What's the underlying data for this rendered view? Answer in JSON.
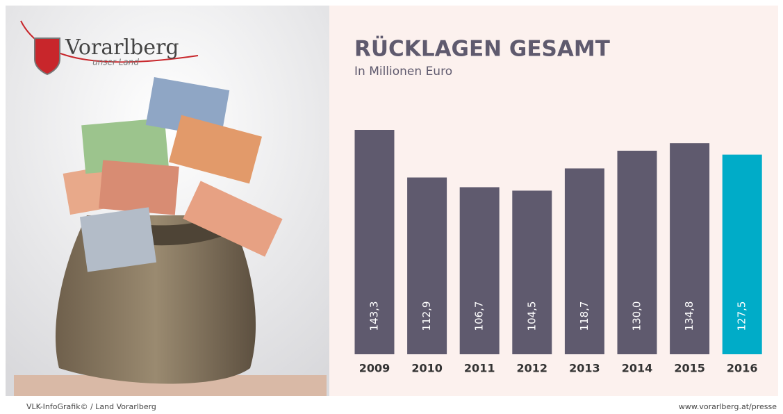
{
  "branding": {
    "name": "Vorarlberg",
    "tagline": "unser Land"
  },
  "chart_data": {
    "type": "bar",
    "title": "RÜCKLAGEN GESAMT",
    "subtitle": "In Millionen Euro",
    "categories": [
      "2009",
      "2010",
      "2011",
      "2012",
      "2013",
      "2014",
      "2015",
      "2016"
    ],
    "values": [
      143.3,
      112.9,
      106.7,
      104.5,
      118.7,
      130.0,
      134.8,
      127.5
    ],
    "value_labels": [
      "143,3",
      "112,9",
      "106,7",
      "104,5",
      "118,7",
      "130,0",
      "134,8",
      "127,5"
    ],
    "colors": [
      "#5f5a6e",
      "#5f5a6e",
      "#5f5a6e",
      "#5f5a6e",
      "#5f5a6e",
      "#5f5a6e",
      "#5f5a6e",
      "#00acc8"
    ]
  },
  "footer": {
    "source": "VLK-InfoGrafik©  /  Land Vorarlberg",
    "url": "www.vorarlberg.at/presse"
  }
}
